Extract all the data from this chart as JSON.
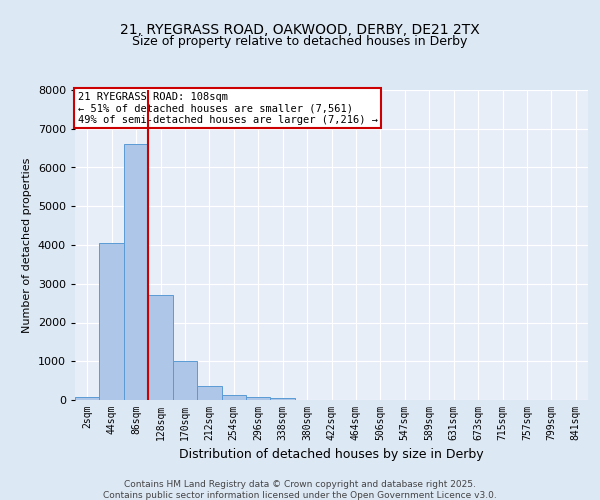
{
  "title_line1": "21, RYEGRASS ROAD, OAKWOOD, DERBY, DE21 2TX",
  "title_line2": "Size of property relative to detached houses in Derby",
  "xlabel": "Distribution of detached houses by size in Derby",
  "ylabel": "Number of detached properties",
  "categories": [
    "2sqm",
    "44sqm",
    "86sqm",
    "128sqm",
    "170sqm",
    "212sqm",
    "254sqm",
    "296sqm",
    "338sqm",
    "380sqm",
    "422sqm",
    "464sqm",
    "506sqm",
    "547sqm",
    "589sqm",
    "631sqm",
    "673sqm",
    "715sqm",
    "757sqm",
    "799sqm",
    "841sqm"
  ],
  "values": [
    80,
    4050,
    6600,
    2700,
    1000,
    350,
    130,
    80,
    50,
    10,
    0,
    0,
    0,
    0,
    0,
    0,
    0,
    0,
    0,
    0,
    0
  ],
  "bar_color": "#aec6e8",
  "bar_edge_color": "#5a9bd5",
  "red_line_x": 2.5,
  "annotation_text": "21 RYEGRASS ROAD: 108sqm\n← 51% of detached houses are smaller (7,561)\n49% of semi-detached houses are larger (7,216) →",
  "annotation_box_color": "#ffffff",
  "annotation_border_color": "#cc0000",
  "ylim": [
    0,
    8000
  ],
  "yticks": [
    0,
    1000,
    2000,
    3000,
    4000,
    5000,
    6000,
    7000,
    8000
  ],
  "bg_color": "#dde8f5",
  "plot_bg_color": "#e8eef8",
  "grid_color": "#ffffff",
  "footer_line1": "Contains HM Land Registry data © Crown copyright and database right 2025.",
  "footer_line2": "Contains public sector information licensed under the Open Government Licence v3.0."
}
